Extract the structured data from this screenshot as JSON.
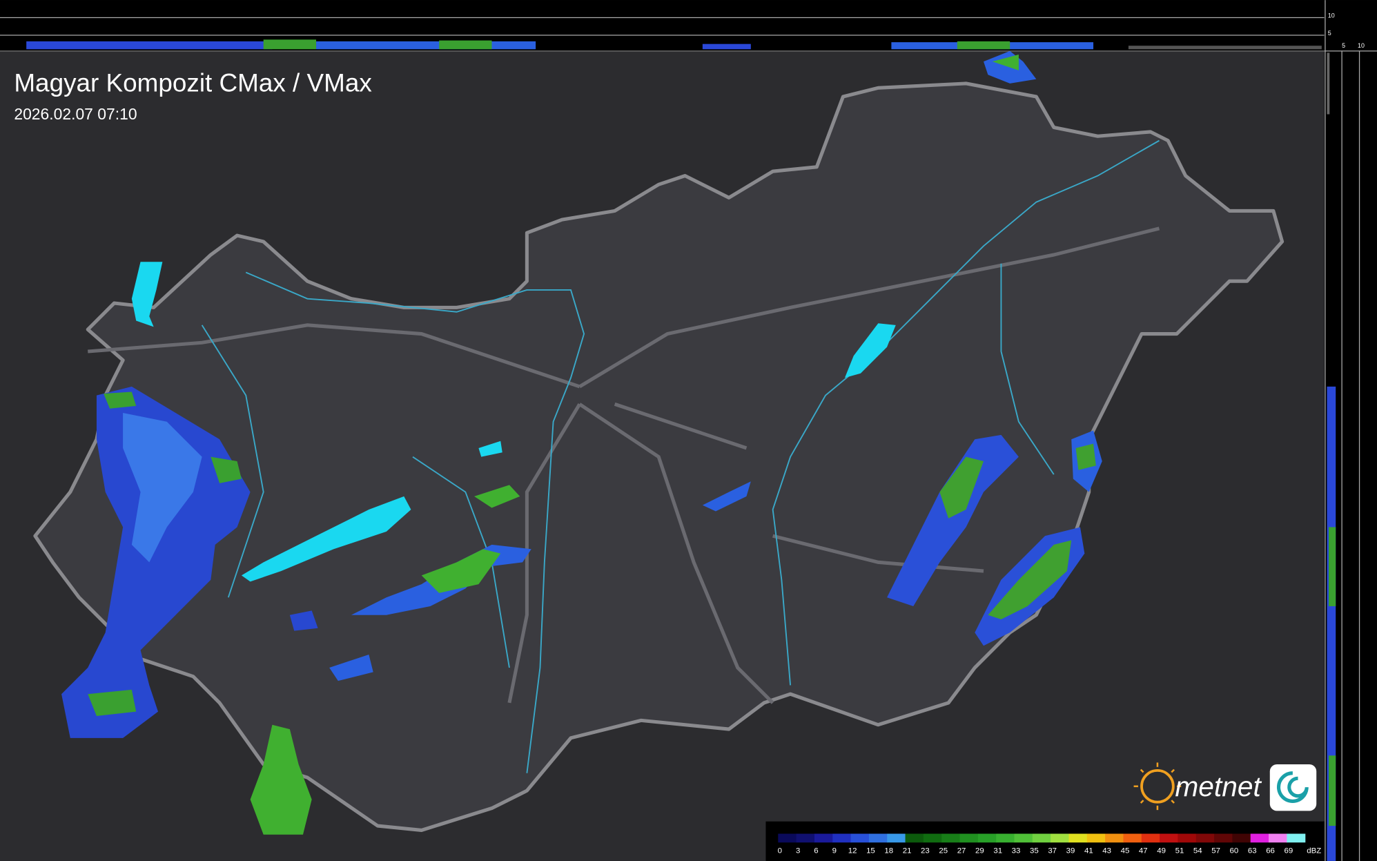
{
  "header": {
    "title": "Magyar Kompozit CMax / VMax",
    "timestamp": "2026.02.07 07:10"
  },
  "side_axis": {
    "top_labels": [
      "10",
      "5"
    ],
    "bottom_labels": [
      "5",
      "10"
    ]
  },
  "logo": {
    "text": "metnet"
  },
  "legend": {
    "unit": "dBZ",
    "labels": [
      "0",
      "3",
      "6",
      "9",
      "12",
      "15",
      "18",
      "21",
      "23",
      "25",
      "27",
      "29",
      "31",
      "33",
      "35",
      "37",
      "39",
      "41",
      "43",
      "45",
      "47",
      "49",
      "51",
      "54",
      "57",
      "60",
      "63",
      "66",
      "69"
    ],
    "colors": [
      "#0a0a5a",
      "#101070",
      "#1a1a9a",
      "#2030c0",
      "#2850d8",
      "#3070e0",
      "#3898e8",
      "#0c5a0c",
      "#106c10",
      "#187e18",
      "#209020",
      "#28a028",
      "#38b030",
      "#50c038",
      "#70d040",
      "#a0e040",
      "#e0e020",
      "#f0c010",
      "#f09010",
      "#f06010",
      "#e03010",
      "#c01010",
      "#a00808",
      "#800808",
      "#600606",
      "#400404",
      "#e020e0",
      "#f080f0",
      "#80f0f0"
    ]
  }
}
